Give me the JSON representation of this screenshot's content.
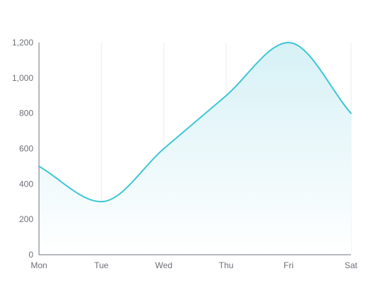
{
  "chart_data": {
    "type": "area",
    "categories": [
      "Mon",
      "Tue",
      "Wed",
      "Thu",
      "Fri",
      "Sat"
    ],
    "series": [
      {
        "values": [
          500,
          300,
          600,
          900,
          1200,
          800
        ]
      }
    ],
    "ylim": [
      0,
      1200
    ],
    "yticks": [
      0,
      200,
      400,
      600,
      800,
      1000,
      1200
    ],
    "ytick_labels": [
      "0",
      "200",
      "400",
      "600",
      "800",
      "1,000",
      "1,200"
    ],
    "smooth": true,
    "grid": {
      "vertical": true,
      "horizontal": false
    },
    "colors": {
      "line": "#3fc5d6",
      "area_top": "#d6f1f6",
      "area_bottom": "#ffffff",
      "axis": "#6e7079",
      "grid": "#e9ebf0",
      "tick_text": "#6e7079"
    }
  }
}
